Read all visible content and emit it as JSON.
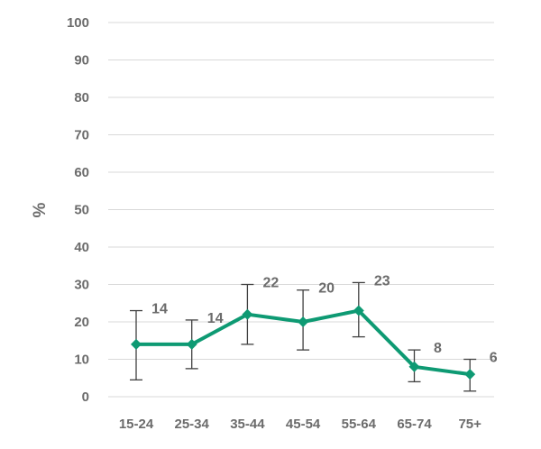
{
  "chart_data": {
    "type": "line",
    "categories": [
      "15-24",
      "25-34",
      "35-44",
      "45-54",
      "55-64",
      "65-74",
      "75+"
    ],
    "values": [
      14,
      14,
      22,
      20,
      23,
      8,
      6
    ],
    "error_low": [
      4.5,
      7.5,
      14,
      12.5,
      16,
      4,
      1.5
    ],
    "error_high": [
      23,
      20.5,
      30,
      28.5,
      30.5,
      12.5,
      10
    ],
    "data_labels": [
      "14",
      "14",
      "22",
      "20",
      "23",
      "8",
      "6"
    ],
    "ylabel": "%",
    "xlabel": "",
    "ylim": [
      0,
      100
    ],
    "yticks": [
      0,
      10,
      20,
      30,
      40,
      50,
      60,
      70,
      80,
      90,
      100
    ],
    "grid": true,
    "color": "#0e9a73"
  }
}
